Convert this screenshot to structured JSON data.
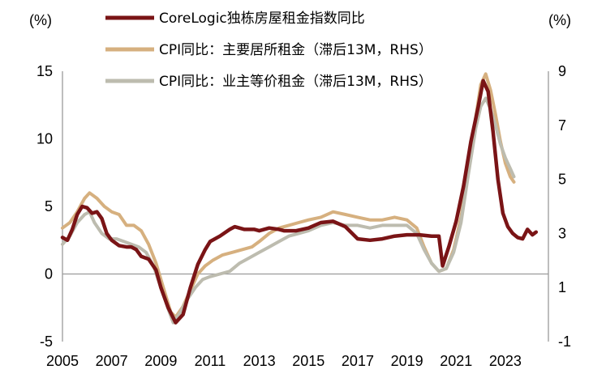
{
  "chart_data": {
    "type": "line",
    "left_unit_label": "(%)",
    "right_unit_label": "(%)",
    "x_axis": {
      "min": 2005,
      "max": 2024.75,
      "tick_labels": [
        "2005",
        "2007",
        "2009",
        "2011",
        "2013",
        "2015",
        "2017",
        "2019",
        "2021",
        "2023"
      ]
    },
    "y_left": {
      "min": -5,
      "max": 15,
      "tick_labels": [
        "15",
        "10",
        "5",
        "0",
        "-5"
      ]
    },
    "y_right": {
      "min": -1,
      "max": 9,
      "tick_labels": [
        "9",
        "7",
        "5",
        "3",
        "1",
        "-1"
      ]
    },
    "legend": {
      "placement": "top"
    },
    "series": [
      {
        "name": "CoreLogic独栋房屋租金指数同比",
        "axis": "left",
        "color": "#7a1416",
        "points": [
          [
            2005,
            2.7
          ],
          [
            2005.2,
            2.5
          ],
          [
            2005.4,
            3.3
          ],
          [
            2005.6,
            4.4
          ],
          [
            2005.8,
            5.0
          ],
          [
            2006,
            4.9
          ],
          [
            2006.2,
            4.5
          ],
          [
            2006.4,
            4.6
          ],
          [
            2006.6,
            4.1
          ],
          [
            2006.8,
            3.0
          ],
          [
            2007,
            2.5
          ],
          [
            2007.3,
            2.1
          ],
          [
            2007.6,
            2.0
          ],
          [
            2007.8,
            2.0
          ],
          [
            2008,
            1.8
          ],
          [
            2008.2,
            1.3
          ],
          [
            2008.5,
            1.1
          ],
          [
            2008.8,
            0.3
          ],
          [
            2009,
            -1.0
          ],
          [
            2009.3,
            -2.5
          ],
          [
            2009.6,
            -3.6
          ],
          [
            2009.9,
            -3.0
          ],
          [
            2010.2,
            -1.0
          ],
          [
            2010.5,
            0.7
          ],
          [
            2010.8,
            1.8
          ],
          [
            2011,
            2.4
          ],
          [
            2011.4,
            2.8
          ],
          [
            2011.8,
            3.3
          ],
          [
            2012,
            3.5
          ],
          [
            2012.4,
            3.3
          ],
          [
            2012.8,
            3.3
          ],
          [
            2013,
            3.2
          ],
          [
            2013.4,
            3.4
          ],
          [
            2013.8,
            3.3
          ],
          [
            2014,
            3.2
          ],
          [
            2014.5,
            3.2
          ],
          [
            2015,
            3.4
          ],
          [
            2015.5,
            3.8
          ],
          [
            2016,
            3.9
          ],
          [
            2016.5,
            3.5
          ],
          [
            2017,
            2.6
          ],
          [
            2017.5,
            2.5
          ],
          [
            2018,
            2.6
          ],
          [
            2018.5,
            2.8
          ],
          [
            2019,
            2.9
          ],
          [
            2019.5,
            2.9
          ],
          [
            2020,
            2.8
          ],
          [
            2020.3,
            2.8
          ],
          [
            2020.45,
            0.6
          ],
          [
            2020.7,
            2.0
          ],
          [
            2021,
            3.9
          ],
          [
            2021.3,
            6.5
          ],
          [
            2021.6,
            9.8
          ],
          [
            2021.9,
            12.4
          ],
          [
            2022.1,
            14.3
          ],
          [
            2022.3,
            13.5
          ],
          [
            2022.5,
            10.5
          ],
          [
            2022.7,
            7.0
          ],
          [
            2022.9,
            4.5
          ],
          [
            2023.1,
            3.5
          ],
          [
            2023.3,
            3.0
          ],
          [
            2023.5,
            2.7
          ],
          [
            2023.7,
            2.6
          ],
          [
            2023.9,
            3.3
          ],
          [
            2024.1,
            2.9
          ],
          [
            2024.25,
            3.1
          ]
        ]
      },
      {
        "name": "CPI同比：主要居所租金（滞后13M，RHS）",
        "axis": "right",
        "color": "#d6b07f",
        "points": [
          [
            2005,
            3.2
          ],
          [
            2005.3,
            3.4
          ],
          [
            2005.6,
            3.8
          ],
          [
            2005.9,
            4.3
          ],
          [
            2006.1,
            4.5
          ],
          [
            2006.4,
            4.3
          ],
          [
            2006.7,
            4.0
          ],
          [
            2007,
            3.8
          ],
          [
            2007.3,
            3.7
          ],
          [
            2007.6,
            3.3
          ],
          [
            2007.9,
            3.3
          ],
          [
            2008.2,
            3.1
          ],
          [
            2008.5,
            2.6
          ],
          [
            2008.8,
            1.9
          ],
          [
            2009.1,
            1.0
          ],
          [
            2009.4,
            0.1
          ],
          [
            2009.6,
            -0.1
          ],
          [
            2009.9,
            0.3
          ],
          [
            2010.2,
            0.9
          ],
          [
            2010.5,
            1.5
          ],
          [
            2010.8,
            1.8
          ],
          [
            2011.1,
            2.0
          ],
          [
            2011.5,
            2.2
          ],
          [
            2011.9,
            2.3
          ],
          [
            2012.3,
            2.4
          ],
          [
            2012.7,
            2.5
          ],
          [
            2013,
            2.7
          ],
          [
            2013.4,
            3.0
          ],
          [
            2013.8,
            3.2
          ],
          [
            2014.2,
            3.3
          ],
          [
            2014.6,
            3.4
          ],
          [
            2015,
            3.5
          ],
          [
            2015.5,
            3.6
          ],
          [
            2016,
            3.8
          ],
          [
            2016.5,
            3.7
          ],
          [
            2017,
            3.6
          ],
          [
            2017.5,
            3.5
          ],
          [
            2018,
            3.5
          ],
          [
            2018.5,
            3.6
          ],
          [
            2019,
            3.5
          ],
          [
            2019.4,
            3.2
          ],
          [
            2019.7,
            2.5
          ],
          [
            2020,
            1.9
          ],
          [
            2020.3,
            1.6
          ],
          [
            2020.6,
            1.7
          ],
          [
            2020.9,
            2.4
          ],
          [
            2021.2,
            3.6
          ],
          [
            2021.5,
            5.4
          ],
          [
            2021.8,
            7.3
          ],
          [
            2022,
            8.5
          ],
          [
            2022.2,
            8.9
          ],
          [
            2022.4,
            8.3
          ],
          [
            2022.6,
            7.4
          ],
          [
            2022.8,
            6.4
          ],
          [
            2023,
            5.6
          ],
          [
            2023.2,
            5.1
          ],
          [
            2023.35,
            4.9
          ]
        ]
      },
      {
        "name": "CPI同比：业主等价租金（滞后13M，RHS）",
        "axis": "right",
        "color": "#bdbcaf",
        "points": [
          [
            2005,
            2.6
          ],
          [
            2005.3,
            2.9
          ],
          [
            2005.6,
            3.4
          ],
          [
            2005.9,
            3.7
          ],
          [
            2006.1,
            3.8
          ],
          [
            2006.3,
            3.4
          ],
          [
            2006.6,
            3.0
          ],
          [
            2006.9,
            2.8
          ],
          [
            2007.2,
            2.8
          ],
          [
            2007.5,
            2.7
          ],
          [
            2007.8,
            2.6
          ],
          [
            2008.1,
            2.5
          ],
          [
            2008.4,
            2.3
          ],
          [
            2008.7,
            1.8
          ],
          [
            2009,
            1.0
          ],
          [
            2009.3,
            0.2
          ],
          [
            2009.5,
            -0.3
          ],
          [
            2009.8,
            0.1
          ],
          [
            2010.1,
            0.6
          ],
          [
            2010.4,
            1.0
          ],
          [
            2010.7,
            1.3
          ],
          [
            2011,
            1.4
          ],
          [
            2011.4,
            1.5
          ],
          [
            2011.8,
            1.6
          ],
          [
            2012.2,
            1.9
          ],
          [
            2012.6,
            2.1
          ],
          [
            2013,
            2.3
          ],
          [
            2013.4,
            2.5
          ],
          [
            2013.8,
            2.7
          ],
          [
            2014.2,
            2.9
          ],
          [
            2014.6,
            3.0
          ],
          [
            2015,
            3.1
          ],
          [
            2015.5,
            3.3
          ],
          [
            2016,
            3.4
          ],
          [
            2016.5,
            3.3
          ],
          [
            2017,
            3.3
          ],
          [
            2017.5,
            3.2
          ],
          [
            2018,
            3.3
          ],
          [
            2018.5,
            3.3
          ],
          [
            2019,
            3.3
          ],
          [
            2019.4,
            3.0
          ],
          [
            2019.7,
            2.4
          ],
          [
            2020,
            1.9
          ],
          [
            2020.3,
            1.6
          ],
          [
            2020.6,
            1.7
          ],
          [
            2020.9,
            2.3
          ],
          [
            2021.2,
            3.4
          ],
          [
            2021.5,
            5.2
          ],
          [
            2021.8,
            6.9
          ],
          [
            2022,
            7.7
          ],
          [
            2022.2,
            8.0
          ],
          [
            2022.4,
            7.6
          ],
          [
            2022.6,
            7.0
          ],
          [
            2022.8,
            6.3
          ],
          [
            2023,
            5.8
          ],
          [
            2023.2,
            5.4
          ],
          [
            2023.35,
            5.1
          ]
        ]
      }
    ]
  }
}
